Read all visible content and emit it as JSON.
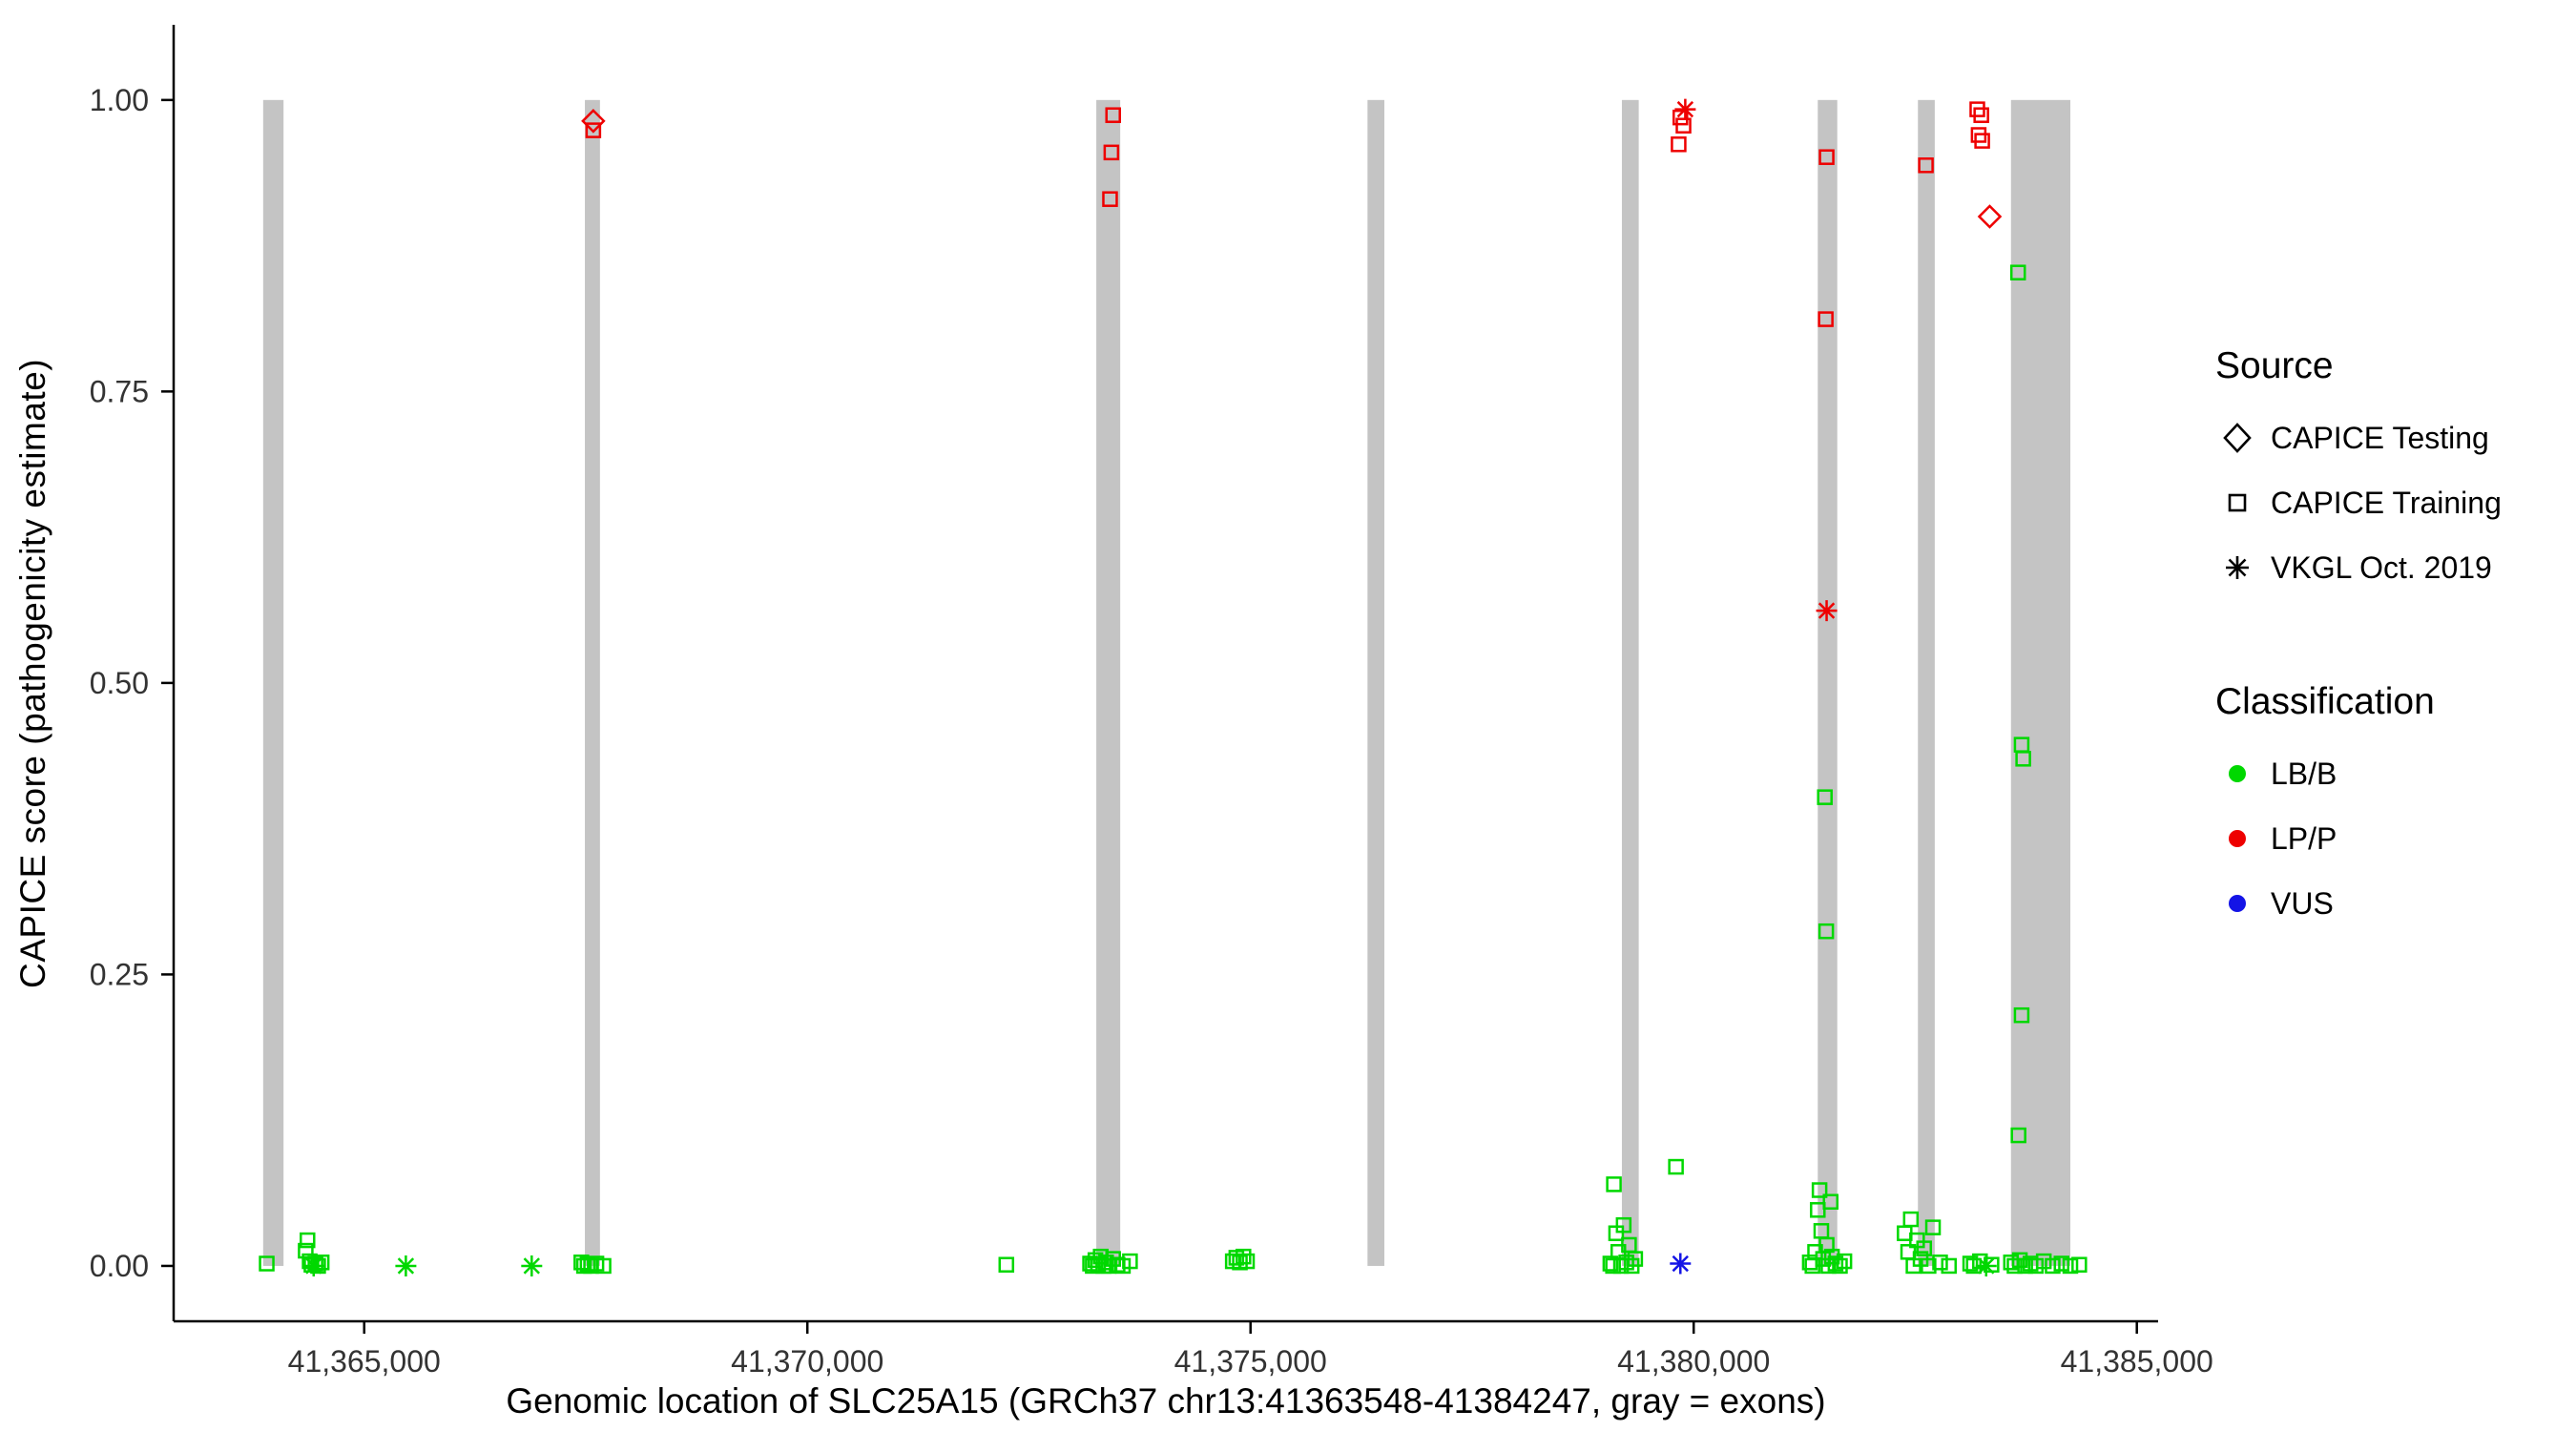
{
  "chart_data": {
    "type": "scatter",
    "title": "",
    "xlabel": "Genomic location of SLC25A15 (GRCh37 chr13:41363548-41384247, gray = exons)",
    "ylabel": "CAPICE score (pathogenicity estimate)",
    "xlim": [
      41362850,
      41385240
    ],
    "ylim": [
      -0.0475,
      1.0645
    ],
    "x_ticks": {
      "values": [
        41365000,
        41370000,
        41375000,
        41380000,
        41385000
      ],
      "labels": [
        "41,365,000",
        "41,370,000",
        "41,375,000",
        "41,380,000",
        "41,385,000"
      ]
    },
    "y_ticks": {
      "values": [
        0,
        0.25,
        0.5,
        0.75,
        1.0
      ],
      "labels": [
        "0.00",
        "0.25",
        "0.50",
        "0.75",
        "1.00"
      ]
    },
    "grid": "off",
    "legend_position": "right",
    "exon_color": "#C4C4C4",
    "axis_color": "#000000",
    "tick_label_color": "#333333",
    "colors": {
      "LB/B": "#00D800",
      "LP/P": "#EE0000",
      "VUS": "#1414E6"
    },
    "exons": [
      [
        41363860,
        41364090
      ],
      [
        41367490,
        41367660
      ],
      [
        41373260,
        41373530
      ],
      [
        41376320,
        41376510
      ],
      [
        41379190,
        41379380
      ],
      [
        41381400,
        41381620
      ],
      [
        41382530,
        41382720
      ],
      [
        41383580,
        41384250
      ]
    ],
    "points": [
      [
        41363900,
        0.002,
        "LB/B",
        "train"
      ],
      [
        41364340,
        0.013,
        "LB/B",
        "train"
      ],
      [
        41364360,
        0.022,
        "LB/B",
        "train"
      ],
      [
        41364385,
        0.004,
        "LB/B",
        "train"
      ],
      [
        41364405,
        0.001,
        "LB/B",
        "train"
      ],
      [
        41364430,
        0.0,
        "LB/B",
        "vkgl"
      ],
      [
        41364450,
        0.002,
        "LB/B",
        "train"
      ],
      [
        41364480,
        0.0,
        "LB/B",
        "train"
      ],
      [
        41364520,
        0.003,
        "LB/B",
        "train"
      ],
      [
        41365470,
        0.0,
        "LB/B",
        "vkgl"
      ],
      [
        41366890,
        0.0,
        "LB/B",
        "vkgl"
      ],
      [
        41367450,
        0.003,
        "LB/B",
        "train"
      ],
      [
        41367480,
        0.0,
        "LB/B",
        "train"
      ],
      [
        41367520,
        0.001,
        "LB/B",
        "train"
      ],
      [
        41367560,
        0.0,
        "LB/B",
        "train"
      ],
      [
        41367620,
        0.002,
        "LB/B",
        "train"
      ],
      [
        41367700,
        0.0,
        "LB/B",
        "train"
      ],
      [
        41372245,
        0.001,
        "LB/B",
        "train"
      ],
      [
        41373190,
        0.002,
        "LB/B",
        "train"
      ],
      [
        41373220,
        0.0,
        "LB/B",
        "train"
      ],
      [
        41373250,
        0.005,
        "LB/B",
        "train"
      ],
      [
        41373280,
        0.001,
        "LB/B",
        "train"
      ],
      [
        41373310,
        0.008,
        "LB/B",
        "train"
      ],
      [
        41373340,
        0.0,
        "LB/B",
        "train"
      ],
      [
        41373370,
        0.003,
        "LB/B",
        "train"
      ],
      [
        41373400,
        0.0,
        "LB/B",
        "train"
      ],
      [
        41373450,
        0.006,
        "LB/B",
        "train"
      ],
      [
        41373500,
        0.001,
        "LB/B",
        "train"
      ],
      [
        41373560,
        0.0,
        "LB/B",
        "train"
      ],
      [
        41373640,
        0.004,
        "LB/B",
        "train"
      ],
      [
        41374800,
        0.004,
        "LB/B",
        "train"
      ],
      [
        41374840,
        0.007,
        "LB/B",
        "train"
      ],
      [
        41374880,
        0.003,
        "LB/B",
        "train"
      ],
      [
        41374920,
        0.008,
        "LB/B",
        "train"
      ],
      [
        41374960,
        0.004,
        "LB/B",
        "train"
      ],
      [
        41379060,
        0.002,
        "LB/B",
        "train"
      ],
      [
        41379090,
        0.0,
        "LB/B",
        "train"
      ],
      [
        41379100,
        0.07,
        "LB/B",
        "train"
      ],
      [
        41379125,
        0.028,
        "LB/B",
        "train"
      ],
      [
        41379150,
        0.012,
        "LB/B",
        "train"
      ],
      [
        41379180,
        0.0,
        "LB/B",
        "train"
      ],
      [
        41379210,
        0.035,
        "LB/B",
        "train"
      ],
      [
        41379240,
        0.003,
        "LB/B",
        "train"
      ],
      [
        41379270,
        0.018,
        "LB/B",
        "train"
      ],
      [
        41379300,
        0.0,
        "LB/B",
        "train"
      ],
      [
        41379340,
        0.006,
        "LB/B",
        "train"
      ],
      [
        41379800,
        0.085,
        "LB/B",
        "train"
      ],
      [
        41381310,
        0.003,
        "LB/B",
        "train"
      ],
      [
        41381340,
        0.0,
        "LB/B",
        "train"
      ],
      [
        41381370,
        0.012,
        "LB/B",
        "train"
      ],
      [
        41381400,
        0.048,
        "LB/B",
        "train"
      ],
      [
        41381420,
        0.065,
        "LB/B",
        "train"
      ],
      [
        41381440,
        0.03,
        "LB/B",
        "train"
      ],
      [
        41381460,
        0.006,
        "LB/B",
        "train"
      ],
      [
        41381480,
        0.402,
        "LB/B",
        "train"
      ],
      [
        41381495,
        0.287,
        "LB/B",
        "train"
      ],
      [
        41381500,
        0.018,
        "LB/B",
        "train"
      ],
      [
        41381520,
        0.0,
        "LB/B",
        "train"
      ],
      [
        41381545,
        0.055,
        "LB/B",
        "train"
      ],
      [
        41381560,
        0.008,
        "LB/B",
        "train"
      ],
      [
        41381600,
        0.002,
        "LB/B",
        "train"
      ],
      [
        41381650,
        0.0,
        "LB/B",
        "train"
      ],
      [
        41381700,
        0.004,
        "LB/B",
        "train"
      ],
      [
        41382380,
        0.028,
        "LB/B",
        "train"
      ],
      [
        41382420,
        0.012,
        "LB/B",
        "train"
      ],
      [
        41382450,
        0.04,
        "LB/B",
        "train"
      ],
      [
        41382480,
        0.0,
        "LB/B",
        "train"
      ],
      [
        41382520,
        0.022,
        "LB/B",
        "train"
      ],
      [
        41382560,
        0.006,
        "LB/B",
        "train"
      ],
      [
        41382600,
        0.015,
        "LB/B",
        "train"
      ],
      [
        41382650,
        0.0,
        "LB/B",
        "train"
      ],
      [
        41382700,
        0.033,
        "LB/B",
        "train"
      ],
      [
        41382780,
        0.003,
        "LB/B",
        "train"
      ],
      [
        41382880,
        0.0,
        "LB/B",
        "train"
      ],
      [
        41383120,
        0.002,
        "LB/B",
        "train"
      ],
      [
        41383160,
        0.0,
        "LB/B",
        "train"
      ],
      [
        41383230,
        0.004,
        "LB/B",
        "train"
      ],
      [
        41383300,
        0.0,
        "LB/B",
        "vkgl"
      ],
      [
        41383360,
        0.001,
        "LB/B",
        "train"
      ],
      [
        41383660,
        0.852,
        "LB/B",
        "train"
      ],
      [
        41383700,
        0.447,
        "LB/B",
        "train"
      ],
      [
        41383718,
        0.435,
        "LB/B",
        "train"
      ],
      [
        41383700,
        0.215,
        "LB/B",
        "train"
      ],
      [
        41383665,
        0.112,
        "LB/B",
        "train"
      ],
      [
        41383580,
        0.003,
        "LB/B",
        "train"
      ],
      [
        41383620,
        0.0,
        "LB/B",
        "train"
      ],
      [
        41383680,
        0.005,
        "LB/B",
        "train"
      ],
      [
        41383740,
        0.0,
        "LB/B",
        "train"
      ],
      [
        41383800,
        0.002,
        "LB/B",
        "train"
      ],
      [
        41383860,
        0.0,
        "LB/B",
        "train"
      ],
      [
        41383950,
        0.004,
        "LB/B",
        "train"
      ],
      [
        41384050,
        0.0,
        "LB/B",
        "train"
      ],
      [
        41384150,
        0.002,
        "LB/B",
        "train"
      ],
      [
        41384250,
        0.0,
        "LB/B",
        "train"
      ],
      [
        41384350,
        0.001,
        "LB/B",
        "train"
      ],
      [
        41367585,
        0.974,
        "LP/P",
        "train"
      ],
      [
        41367585,
        0.982,
        "LP/P",
        "test"
      ],
      [
        41373450,
        0.987,
        "LP/P",
        "train"
      ],
      [
        41373430,
        0.955,
        "LP/P",
        "train"
      ],
      [
        41373415,
        0.915,
        "LP/P",
        "train"
      ],
      [
        41379850,
        0.985,
        "LP/P",
        "train"
      ],
      [
        41379885,
        0.978,
        "LP/P",
        "train"
      ],
      [
        41379830,
        0.962,
        "LP/P",
        "train"
      ],
      [
        41379905,
        0.992,
        "LP/P",
        "vkgl"
      ],
      [
        41381500,
        0.951,
        "LP/P",
        "train"
      ],
      [
        41381490,
        0.812,
        "LP/P",
        "train"
      ],
      [
        41381500,
        0.562,
        "LP/P",
        "vkgl"
      ],
      [
        41382620,
        0.944,
        "LP/P",
        "train"
      ],
      [
        41383200,
        0.992,
        "LP/P",
        "train"
      ],
      [
        41383245,
        0.987,
        "LP/P",
        "train"
      ],
      [
        41383215,
        0.97,
        "LP/P",
        "train"
      ],
      [
        41383255,
        0.965,
        "LP/P",
        "train"
      ],
      [
        41383340,
        0.9,
        "LP/P",
        "test"
      ],
      [
        41379850,
        0.002,
        "VUS",
        "vkgl"
      ]
    ],
    "legend": {
      "source": {
        "title": "Source",
        "items": [
          {
            "label": "CAPICE Testing",
            "code": "test",
            "marker": "diamond"
          },
          {
            "label": "CAPICE Training",
            "code": "train",
            "marker": "square"
          },
          {
            "label": "VKGL Oct. 2019",
            "code": "vkgl",
            "marker": "asterisk"
          }
        ]
      },
      "classification": {
        "title": "Classification",
        "items": [
          {
            "label": "LB/B",
            "color": "#00D800"
          },
          {
            "label": "LP/P",
            "color": "#EE0000"
          },
          {
            "label": "VUS",
            "color": "#1414E6"
          }
        ]
      }
    }
  }
}
